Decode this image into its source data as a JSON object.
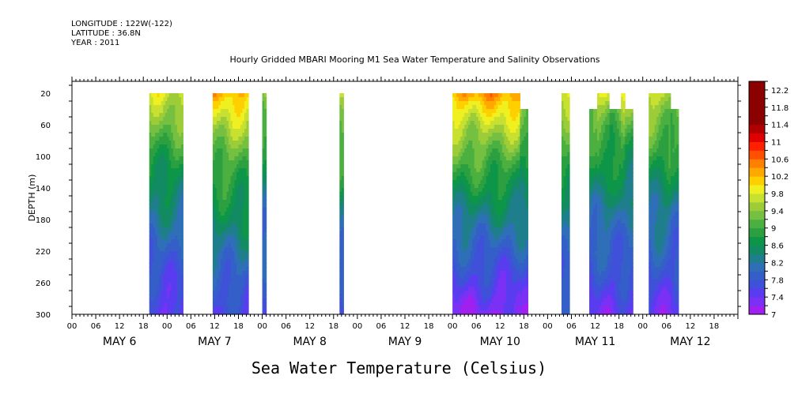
{
  "header": {
    "longitude": "LONGITUDE : 122W(-122)",
    "latitude": "LATITUDE : 36.8N",
    "year": "YEAR : 2011"
  },
  "title": "Hourly Gridded MBARI Mooring M1 Sea Water Temperature and Salinity Observations",
  "bottom_title": "Sea Water Temperature (Celsius)",
  "colors": {
    "levels": [
      "#a020f0",
      "#7b30f5",
      "#5a3cf0",
      "#3f51d8",
      "#345fc8",
      "#2f6fb8",
      "#1f7e8c",
      "#128a62",
      "#0e9648",
      "#2ca040",
      "#4bb040",
      "#75c040",
      "#9ccc38",
      "#c8e030",
      "#f0f020",
      "#ffd000",
      "#ffa800",
      "#ff8000",
      "#ff5000",
      "#ff2000",
      "#e00000",
      "#b00000",
      "#8b0000"
    ]
  },
  "chart_data": {
    "type": "heatmap",
    "title": "Hourly Gridded MBARI Mooring M1 Sea Water Temperature and Salinity Observations",
    "xlabel": "",
    "ylabel": "DEPTH (m)",
    "ylim": [
      300,
      5
    ],
    "xlim_hours": [
      0,
      168
    ],
    "x_ticks": [
      "00",
      "06",
      "12",
      "18",
      "00",
      "06",
      "12",
      "18",
      "00",
      "06",
      "12",
      "18",
      "00",
      "06",
      "12",
      "18",
      "00",
      "06",
      "12",
      "18",
      "00",
      "06",
      "12",
      "18",
      "00",
      "06",
      "12",
      "18"
    ],
    "x_days": [
      "MAY  6",
      "MAY  7",
      "MAY  8",
      "MAY  9",
      "MAY 10",
      "MAY 11",
      "MAY 12"
    ],
    "y_ticks": [
      20,
      60,
      100,
      140,
      180,
      220,
      260,
      300
    ],
    "colorbar": {
      "min": 7.0,
      "max": 12.4,
      "step": 0.2,
      "labels": [
        "12.2",
        "11.8",
        "11.4",
        "11",
        "10.6",
        "10.2",
        "9.8",
        "9.4",
        "9",
        "8.6",
        "8.2",
        "7.8",
        "7.4",
        "7"
      ]
    },
    "segments": [
      {
        "start": 19.5,
        "end": 28.0,
        "top": 20,
        "surface_temp": 9.8,
        "deep_temp": 7.4
      },
      {
        "start": 35.5,
        "end": 44.5,
        "top": 20,
        "surface_temp": 10.2,
        "deep_temp": 7.6
      },
      {
        "start": 48.0,
        "end": 49.0,
        "top": 20,
        "surface_temp": 9.4,
        "deep_temp": 7.6
      },
      {
        "start": 67.5,
        "end": 68.5,
        "top": 20,
        "surface_temp": 9.8,
        "deep_temp": 7.6
      },
      {
        "start": 96.0,
        "end": 113.0,
        "top": 20,
        "surface_temp": 10.4,
        "deep_temp": 7.2
      },
      {
        "start": 113.0,
        "end": 115.0,
        "top": 40,
        "surface_temp": 9.8,
        "deep_temp": 7.4
      },
      {
        "start": 123.5,
        "end": 125.5,
        "top": 20,
        "surface_temp": 9.8,
        "deep_temp": 7.6
      },
      {
        "start": 130.5,
        "end": 137.5,
        "top": 40,
        "surface_temp": 9.6,
        "deep_temp": 7.4
      },
      {
        "start": 132.5,
        "end": 135.5,
        "top": 20,
        "surface_temp": 9.8,
        "deep_temp": 7.4
      },
      {
        "start": 137.5,
        "end": 138.5,
        "top": 40,
        "surface_temp": 9.6,
        "deep_temp": 7.4
      },
      {
        "start": 138.5,
        "end": 139.5,
        "top": 20,
        "surface_temp": 9.8,
        "deep_temp": 7.4
      },
      {
        "start": 139.5,
        "end": 141.5,
        "top": 40,
        "surface_temp": 9.6,
        "deep_temp": 7.4
      },
      {
        "start": 145.5,
        "end": 151.0,
        "top": 20,
        "surface_temp": 9.8,
        "deep_temp": 7.4
      },
      {
        "start": 151.0,
        "end": 153.0,
        "top": 40,
        "surface_temp": 9.6,
        "deep_temp": 7.4
      }
    ]
  }
}
